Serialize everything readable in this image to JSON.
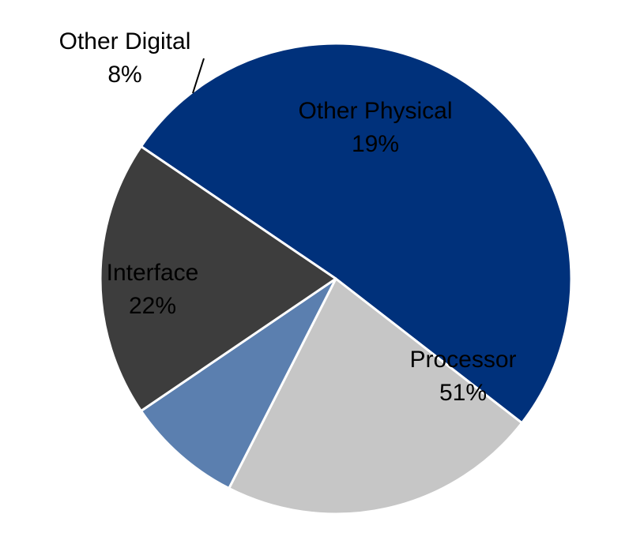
{
  "chart_data": {
    "type": "pie",
    "start_angle_deg": -55.8,
    "direction": "clockwise",
    "slices": [
      {
        "label": "Processor",
        "value": 51,
        "value_label": "51%",
        "color": "#00317b",
        "text_color": "#000000"
      },
      {
        "label": "Interface",
        "value": 22,
        "value_label": "22%",
        "color": "#c6c6c6",
        "text_color": "#000000"
      },
      {
        "label": "Other Digital",
        "value": 8,
        "value_label": "8%",
        "color": "#5b7faf",
        "text_color": "#000000"
      },
      {
        "label": "Other Physical",
        "value": 19,
        "value_label": "19%",
        "color": "#3d3d3d",
        "text_color": "#000000"
      }
    ],
    "title": "",
    "legend": "none"
  }
}
